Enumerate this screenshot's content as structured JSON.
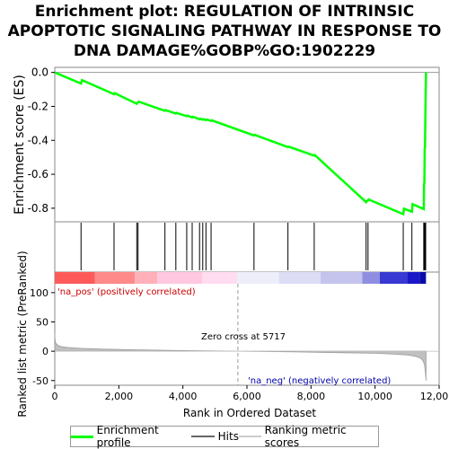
{
  "title_lines": [
    "Enrichment plot: REGULATION OF INTRINSIC",
    "APOPTOTIC SIGNALING PATHWAY IN RESPONSE TO",
    "DNA DAMAGE%GOBP%GO:1902229"
  ],
  "legend": {
    "items": [
      {
        "label": "Enrichment profile",
        "color": "#00ff00"
      },
      {
        "label": "Hits",
        "color": "#666666"
      },
      {
        "label": "Ranking metric scores",
        "color": "#cccccc"
      }
    ]
  },
  "chart_data": [
    {
      "type": "line",
      "panel": "enrichment",
      "ylabel": "Enrichment score (ES)",
      "xlim": [
        0,
        12000
      ],
      "ylim": [
        -0.88,
        0.03
      ],
      "y_ticks": [
        "0.0",
        "-0.2",
        "-0.4",
        "-0.6",
        "-0.8"
      ],
      "y_tick_values": [
        0.0,
        -0.2,
        -0.4,
        -0.6,
        -0.8
      ],
      "grid": false,
      "series": [
        {
          "name": "Enrichment profile",
          "color": "#00ff00",
          "x": [
            0,
            820,
            850,
            1850,
            1870,
            2560,
            2590,
            2620,
            3440,
            3460,
            3780,
            3800,
            4120,
            4140,
            4290,
            4310,
            4520,
            4540,
            4620,
            4640,
            4720,
            4740,
            4880,
            4900,
            6220,
            6240,
            7280,
            7300,
            8100,
            8120,
            9720,
            9740,
            9780,
            9800,
            10880,
            10900,
            11150,
            11170,
            11520,
            11530,
            11540,
            11550,
            11560,
            11575,
            11590
          ],
          "y": [
            0.0,
            -0.065,
            -0.045,
            -0.128,
            -0.122,
            -0.185,
            -0.178,
            -0.172,
            -0.226,
            -0.222,
            -0.242,
            -0.238,
            -0.258,
            -0.254,
            -0.265,
            -0.261,
            -0.276,
            -0.272,
            -0.279,
            -0.275,
            -0.281,
            -0.277,
            -0.286,
            -0.282,
            -0.371,
            -0.368,
            -0.44,
            -0.437,
            -0.49,
            -0.487,
            -0.764,
            -0.758,
            -0.755,
            -0.748,
            -0.835,
            -0.803,
            -0.82,
            -0.776,
            -0.805,
            -0.66,
            -0.65,
            -0.45,
            -0.44,
            -0.2,
            0.0
          ]
        }
      ]
    },
    {
      "type": "scatter",
      "panel": "hits",
      "xlim": [
        0,
        12000
      ],
      "hit_positions": [
        820,
        1850,
        2560,
        2600,
        3440,
        3780,
        4120,
        4290,
        4520,
        4620,
        4720,
        4880,
        6220,
        7280,
        8100,
        9720,
        9780,
        10880,
        11150,
        11520,
        11540,
        11560,
        11580
      ]
    },
    {
      "type": "heatmap",
      "panel": "ranking-color-bar",
      "xlim": [
        0,
        12000
      ],
      "segments": [
        {
          "start": 0,
          "end": 1250,
          "color": "#ff5a5a"
        },
        {
          "start": 1250,
          "end": 2500,
          "color": "#ff8a8a"
        },
        {
          "start": 2500,
          "end": 3200,
          "color": "#ffb0b8"
        },
        {
          "start": 3200,
          "end": 4600,
          "color": "#ffc8e0"
        },
        {
          "start": 4600,
          "end": 5700,
          "color": "#ffdcf0"
        },
        {
          "start": 5700,
          "end": 7000,
          "color": "#eeeefa"
        },
        {
          "start": 7000,
          "end": 8300,
          "color": "#dcdcf5"
        },
        {
          "start": 8300,
          "end": 9600,
          "color": "#c4c4ee"
        },
        {
          "start": 9600,
          "end": 10150,
          "color": "#8f8fe2"
        },
        {
          "start": 10150,
          "end": 11000,
          "color": "#3838d2"
        },
        {
          "start": 11000,
          "end": 11400,
          "color": "#1818c8"
        },
        {
          "start": 11400,
          "end": 11590,
          "color": "#0a0aa8"
        }
      ]
    },
    {
      "type": "area",
      "panel": "ranked-list-metric",
      "ylabel": "Ranked list metric (PreRanked)",
      "xlabel": "Rank in Ordered Dataset",
      "xlim": [
        0,
        12000
      ],
      "ylim": [
        -58,
        135
      ],
      "x_ticks": [
        "0",
        "2,000",
        "4,000",
        "6,000",
        "8,000",
        "10,000",
        "12,000"
      ],
      "x_tick_values": [
        0,
        2000,
        4000,
        6000,
        8000,
        10000,
        12000
      ],
      "y_ticks": [
        "100",
        "50",
        "0",
        "-50"
      ],
      "y_tick_values": [
        100,
        50,
        0,
        -50
      ],
      "zero_cross": 5717,
      "annotations": {
        "zero_cross_label": "Zero cross at 5717",
        "pos_label": "'na_pos' (positively correlated)",
        "neg_label": "'na_neg' (negatively correlated)"
      },
      "series": [
        {
          "color": "#c0c0c0",
          "x": [
            0,
            5,
            15,
            40,
            100,
            200,
            400,
            800,
            1500,
            2500,
            4000,
            5717,
            7500,
            9000,
            10000,
            10600,
            11000,
            11200,
            11350,
            11450,
            11500,
            11540,
            11570,
            11590
          ],
          "y": [
            30,
            22,
            17,
            13,
            10,
            8,
            6.5,
            5,
            3.5,
            2.5,
            1.2,
            0,
            -1.2,
            -2.5,
            -3.5,
            -5,
            -6.5,
            -8,
            -10,
            -13,
            -17,
            -22,
            -35,
            -50
          ]
        }
      ]
    }
  ]
}
